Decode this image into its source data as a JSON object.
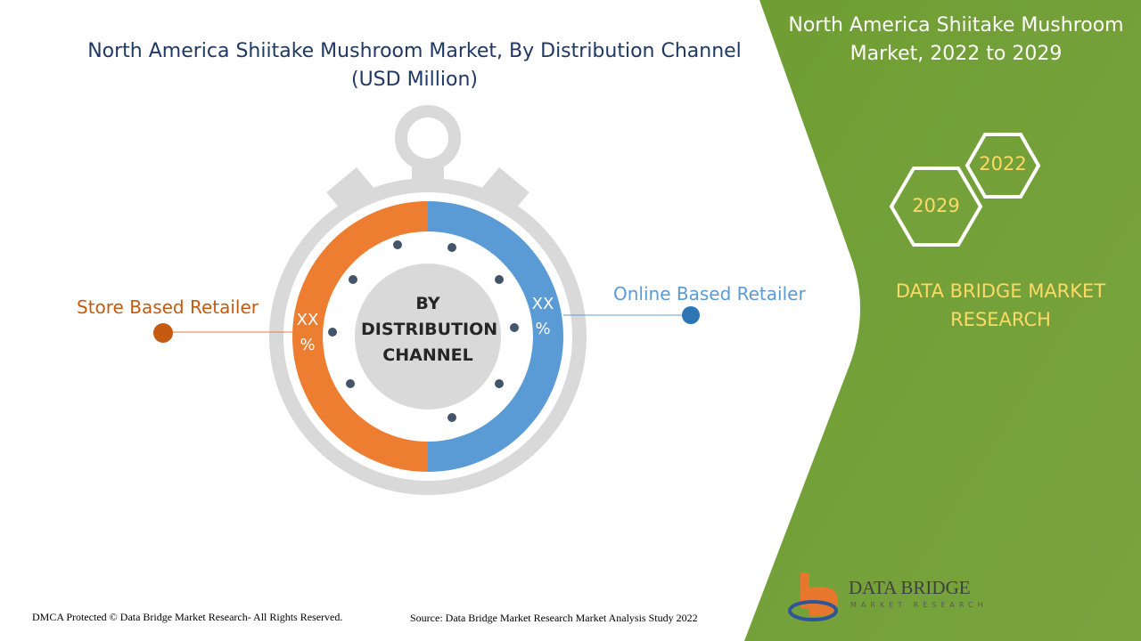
{
  "header": {
    "title": "North America Shiitake Mushroom Market, By Distribution Channel (USD Million)"
  },
  "center_label": "BY DISTRIBUTION CHANNEL",
  "segments": [
    {
      "label": "Store Based Retailer",
      "value_label": "XX %"
    },
    {
      "label": "Online Based Retailer",
      "value_label": "XX %"
    }
  ],
  "side_panel": {
    "title": "North America Shiitake Mushroom Market, 2022 to 2029",
    "years": [
      "2022",
      "2029"
    ],
    "brand": "DATA BRIDGE MARKET RESEARCH"
  },
  "logo": {
    "name": "DATA BRIDGE",
    "tagline": "MARKET RESEARCH"
  },
  "footer": {
    "copyright": "DMCA Protected © Data Bridge Market Research- All Rights Reserved.",
    "source": "Source: Data Bridge Market Research Market Analysis Study 2022"
  }
}
